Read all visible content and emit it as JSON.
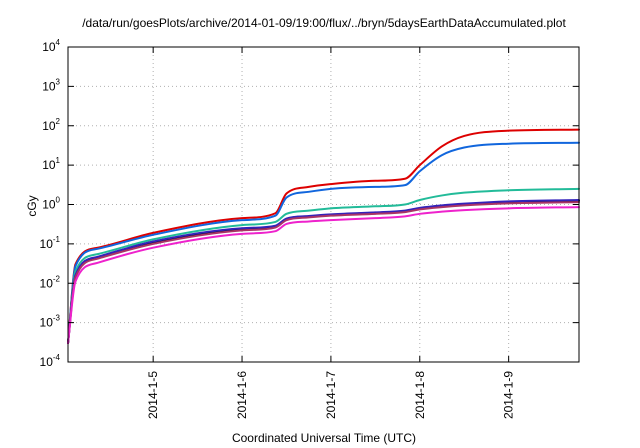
{
  "chart_data": {
    "type": "line",
    "title": "/data/run/goesPlots/archive/2014-01-09/19:00/flux/../bryn/5daysEarthDataAccumulated.plot",
    "xlabel": "Coordinated Universal Time (UTC)",
    "ylabel": "cGy",
    "y_scale": "log",
    "ylim": [
      0.0001,
      10000
    ],
    "xlim": [
      "2014-01-04 01:00",
      "2014-01-09 19:00"
    ],
    "grid": true,
    "legend": "none",
    "x_ticks": [
      {
        "x": "2014-01-05 00:00",
        "label": "2014-1-5"
      },
      {
        "x": "2014-01-06 00:00",
        "label": "2014-1-6"
      },
      {
        "x": "2014-01-07 00:00",
        "label": "2014-1-7"
      },
      {
        "x": "2014-01-08 00:00",
        "label": "2014-1-8"
      },
      {
        "x": "2014-01-09 00:00",
        "label": "2014-1-9"
      }
    ],
    "y_ticks": [
      {
        "value": 0.0001,
        "base": "10",
        "exp": "-4"
      },
      {
        "value": 0.001,
        "base": "10",
        "exp": "-3"
      },
      {
        "value": 0.01,
        "base": "10",
        "exp": "-2"
      },
      {
        "value": 0.1,
        "base": "10",
        "exp": "-1"
      },
      {
        "value": 1,
        "base": "10",
        "exp": "0"
      },
      {
        "value": 10,
        "base": "10",
        "exp": "1"
      },
      {
        "value": 100,
        "base": "10",
        "exp": "2"
      },
      {
        "value": 1000,
        "base": "10",
        "exp": "3"
      },
      {
        "value": 10000,
        "base": "10",
        "exp": "4"
      }
    ],
    "series": [
      {
        "color": "#dd0000",
        "points": [
          [
            "2014-01-04 01:00",
            0.0003
          ],
          [
            "2014-01-04 03:00",
            0.03
          ],
          [
            "2014-01-04 09:00",
            0.08
          ],
          [
            "2014-01-05 00:00",
            0.19
          ],
          [
            "2014-01-06 00:00",
            0.45
          ],
          [
            "2014-01-06 09:00",
            0.6
          ],
          [
            "2014-01-06 12:00",
            1.9
          ],
          [
            "2014-01-06 18:00",
            2.8
          ],
          [
            "2014-01-07 00:00",
            3.3
          ],
          [
            "2014-01-07 12:00",
            4.0
          ],
          [
            "2014-01-07 20:00",
            4.5
          ],
          [
            "2014-01-08 00:00",
            10
          ],
          [
            "2014-01-08 06:00",
            30
          ],
          [
            "2014-01-08 12:00",
            55
          ],
          [
            "2014-01-09 00:00",
            75
          ],
          [
            "2014-01-09 19:00",
            80
          ]
        ]
      },
      {
        "color": "#1166dd",
        "points": [
          [
            "2014-01-04 01:00",
            0.0003
          ],
          [
            "2014-01-04 03:00",
            0.027
          ],
          [
            "2014-01-04 09:00",
            0.075
          ],
          [
            "2014-01-05 00:00",
            0.17
          ],
          [
            "2014-01-06 00:00",
            0.4
          ],
          [
            "2014-01-06 09:00",
            0.52
          ],
          [
            "2014-01-06 12:00",
            1.5
          ],
          [
            "2014-01-06 18:00",
            2.1
          ],
          [
            "2014-01-07 00:00",
            2.5
          ],
          [
            "2014-01-07 12:00",
            2.8
          ],
          [
            "2014-01-07 20:00",
            3.1
          ],
          [
            "2014-01-08 00:00",
            7
          ],
          [
            "2014-01-08 06:00",
            18
          ],
          [
            "2014-01-08 12:00",
            28
          ],
          [
            "2014-01-09 00:00",
            35
          ],
          [
            "2014-01-09 19:00",
            37
          ]
        ]
      },
      {
        "color": "#22bb99",
        "points": [
          [
            "2014-01-04 01:00",
            0.0003
          ],
          [
            "2014-01-04 03:00",
            0.02
          ],
          [
            "2014-01-04 09:00",
            0.055
          ],
          [
            "2014-01-05 00:00",
            0.13
          ],
          [
            "2014-01-06 00:00",
            0.3
          ],
          [
            "2014-01-06 09:00",
            0.36
          ],
          [
            "2014-01-06 12:00",
            0.58
          ],
          [
            "2014-01-06 18:00",
            0.7
          ],
          [
            "2014-01-07 00:00",
            0.8
          ],
          [
            "2014-01-07 12:00",
            0.9
          ],
          [
            "2014-01-07 20:00",
            1.0
          ],
          [
            "2014-01-08 00:00",
            1.3
          ],
          [
            "2014-01-08 06:00",
            1.7
          ],
          [
            "2014-01-08 12:00",
            2.0
          ],
          [
            "2014-01-09 00:00",
            2.3
          ],
          [
            "2014-01-09 19:00",
            2.5
          ]
        ]
      },
      {
        "color": "#000000",
        "points": [
          [
            "2014-01-04 01:00",
            0.0003
          ],
          [
            "2014-01-04 03:00",
            0.015
          ],
          [
            "2014-01-04 09:00",
            0.045
          ],
          [
            "2014-01-05 00:00",
            0.11
          ],
          [
            "2014-01-06 00:00",
            0.24
          ],
          [
            "2014-01-06 09:00",
            0.28
          ],
          [
            "2014-01-06 12:00",
            0.43
          ],
          [
            "2014-01-06 18:00",
            0.5
          ],
          [
            "2014-01-07 00:00",
            0.55
          ],
          [
            "2014-01-07 12:00",
            0.62
          ],
          [
            "2014-01-07 20:00",
            0.68
          ],
          [
            "2014-01-08 00:00",
            0.8
          ],
          [
            "2014-01-08 06:00",
            0.92
          ],
          [
            "2014-01-08 12:00",
            1.0
          ],
          [
            "2014-01-09 00:00",
            1.15
          ],
          [
            "2014-01-09 19:00",
            1.25
          ]
        ]
      },
      {
        "color": "#3322bb",
        "points": [
          [
            "2014-01-04 01:00",
            0.0003
          ],
          [
            "2014-01-04 03:00",
            0.016
          ],
          [
            "2014-01-04 09:00",
            0.047
          ],
          [
            "2014-01-05 00:00",
            0.115
          ],
          [
            "2014-01-06 00:00",
            0.25
          ],
          [
            "2014-01-06 09:00",
            0.29
          ],
          [
            "2014-01-06 12:00",
            0.44
          ],
          [
            "2014-01-06 18:00",
            0.51
          ],
          [
            "2014-01-07 00:00",
            0.56
          ],
          [
            "2014-01-07 12:00",
            0.63
          ],
          [
            "2014-01-07 20:00",
            0.7
          ],
          [
            "2014-01-08 00:00",
            0.82
          ],
          [
            "2014-01-08 06:00",
            0.95
          ],
          [
            "2014-01-08 12:00",
            1.05
          ],
          [
            "2014-01-09 00:00",
            1.2
          ],
          [
            "2014-01-09 19:00",
            1.3
          ]
        ]
      },
      {
        "color": "#aa3366",
        "points": [
          [
            "2014-01-04 01:00",
            0.0003
          ],
          [
            "2014-01-04 03:00",
            0.014
          ],
          [
            "2014-01-04 09:00",
            0.042
          ],
          [
            "2014-01-05 00:00",
            0.1
          ],
          [
            "2014-01-06 00:00",
            0.22
          ],
          [
            "2014-01-06 09:00",
            0.26
          ],
          [
            "2014-01-06 12:00",
            0.4
          ],
          [
            "2014-01-06 18:00",
            0.47
          ],
          [
            "2014-01-07 00:00",
            0.52
          ],
          [
            "2014-01-07 12:00",
            0.58
          ],
          [
            "2014-01-07 20:00",
            0.64
          ],
          [
            "2014-01-08 00:00",
            0.75
          ],
          [
            "2014-01-08 06:00",
            0.86
          ],
          [
            "2014-01-08 12:00",
            0.95
          ],
          [
            "2014-01-09 00:00",
            1.07
          ],
          [
            "2014-01-09 19:00",
            1.15
          ]
        ]
      },
      {
        "color": "#ee22cc",
        "points": [
          [
            "2014-01-04 01:00",
            0.0003
          ],
          [
            "2014-01-04 03:00",
            0.011
          ],
          [
            "2014-01-04 09:00",
            0.033
          ],
          [
            "2014-01-05 00:00",
            0.08
          ],
          [
            "2014-01-06 00:00",
            0.18
          ],
          [
            "2014-01-06 09:00",
            0.21
          ],
          [
            "2014-01-06 12:00",
            0.32
          ],
          [
            "2014-01-06 18:00",
            0.37
          ],
          [
            "2014-01-07 00:00",
            0.4
          ],
          [
            "2014-01-07 12:00",
            0.45
          ],
          [
            "2014-01-07 20:00",
            0.5
          ],
          [
            "2014-01-08 00:00",
            0.58
          ],
          [
            "2014-01-08 06:00",
            0.66
          ],
          [
            "2014-01-08 12:00",
            0.72
          ],
          [
            "2014-01-09 00:00",
            0.8
          ],
          [
            "2014-01-09 19:00",
            0.86
          ]
        ]
      }
    ]
  }
}
